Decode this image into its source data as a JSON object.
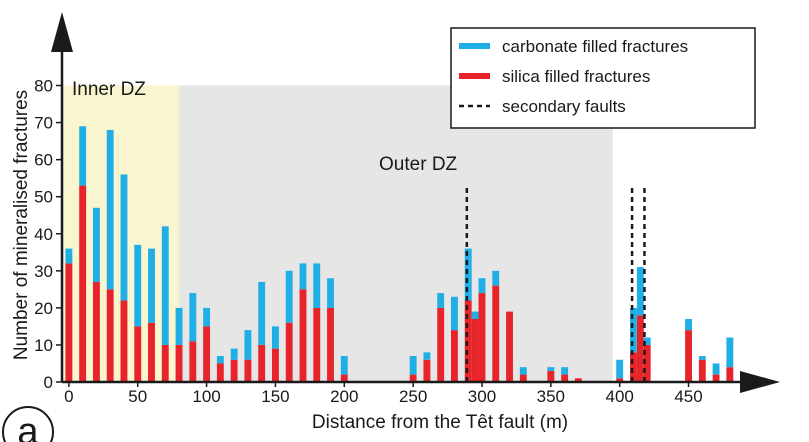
{
  "chart_data": {
    "type": "bar",
    "stacked": true,
    "panel_label": "a",
    "xlabel": "Distance from the Têt fault (m)",
    "ylabel": "Number of mineralised fractures",
    "xlim": [
      -5,
      490
    ],
    "ylim": [
      0,
      80
    ],
    "x_ticks": [
      0,
      50,
      100,
      150,
      200,
      250,
      300,
      350,
      400,
      450
    ],
    "y_ticks": [
      0,
      10,
      20,
      30,
      40,
      50,
      60,
      70,
      80
    ],
    "bar_width": 5,
    "zones": [
      {
        "label": "Inner DZ",
        "x_range": [
          -5,
          80
        ],
        "color": "#f8f5cf"
      },
      {
        "label": "Outer DZ",
        "x_range": [
          80,
          395
        ],
        "color": "#e6e6e6"
      }
    ],
    "series": [
      {
        "name": "silica filled fractures",
        "color": "#e8242b",
        "x": [
          0,
          10,
          20,
          30,
          40,
          50,
          60,
          70,
          80,
          90,
          100,
          110,
          120,
          130,
          140,
          150,
          160,
          170,
          180,
          190,
          200,
          250,
          260,
          270,
          280,
          290,
          295,
          300,
          310,
          320,
          330,
          350,
          360,
          370,
          400,
          410,
          415,
          420,
          450,
          460,
          470,
          480
        ],
        "values": [
          32,
          53,
          27,
          25,
          22,
          15,
          16,
          10,
          10,
          11,
          15,
          5,
          6,
          6,
          10,
          9,
          16,
          25,
          20,
          20,
          2,
          2,
          6,
          20,
          14,
          22,
          17,
          24,
          26,
          19,
          2,
          3,
          2,
          1,
          1,
          8,
          18,
          10,
          14,
          6,
          2,
          4
        ]
      },
      {
        "name": "carbonate filled fractures",
        "color": "#20aee6",
        "x": [
          0,
          10,
          20,
          30,
          40,
          50,
          60,
          70,
          80,
          90,
          100,
          110,
          120,
          130,
          140,
          150,
          160,
          170,
          180,
          190,
          200,
          250,
          260,
          270,
          280,
          290,
          295,
          300,
          310,
          320,
          330,
          350,
          360,
          370,
          400,
          410,
          415,
          420,
          450,
          460,
          470,
          480
        ],
        "values": [
          4,
          16,
          20,
          43,
          34,
          22,
          20,
          32,
          10,
          13,
          5,
          2,
          3,
          8,
          17,
          6,
          14,
          7,
          12,
          8,
          5,
          5,
          2,
          4,
          9,
          14,
          2,
          4,
          4,
          0,
          2,
          1,
          2,
          0,
          5,
          12,
          13,
          2,
          3,
          1,
          3,
          8
        ]
      }
    ],
    "secondary_faults": {
      "name": "secondary faults",
      "x": [
        289,
        409,
        418
      ]
    },
    "legend_position": "top-right"
  }
}
